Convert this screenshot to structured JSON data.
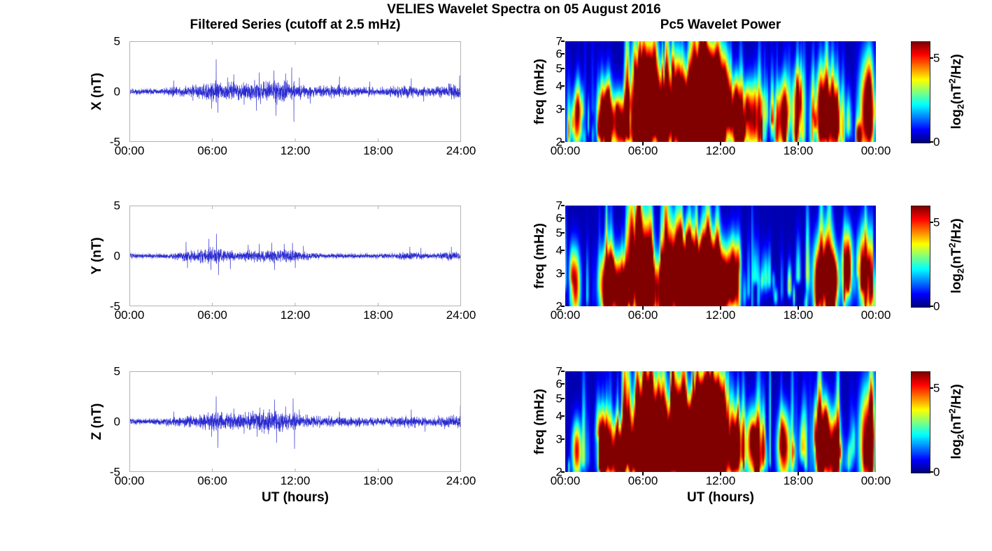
{
  "figure": {
    "suptitle": "VELIES Wavelet Spectra on 05 August 2016",
    "left_column_title": "Filtered Series (cutoff at 2.5 mHz)",
    "right_column_title": "Pc5 Wavelet Power",
    "x_axis_label": "UT (hours)",
    "colorbar_label": {
      "pre": "log",
      "sub": "2",
      "mid": "(nT",
      "sup": "2",
      "post": "/Hz)"
    },
    "background_color": "#ffffff",
    "axis_box_color": "#b2b2b2",
    "tick_label_color": "#000000"
  },
  "chart_data": [
    {
      "type": "line",
      "component": "X",
      "ylabel": "X (nT)",
      "ylim": [
        -5,
        5
      ],
      "yticks": [
        5,
        0,
        -5
      ],
      "x_range_hours": [
        0,
        24
      ],
      "xticks": [
        "00:00",
        "06:00",
        "12:00",
        "18:00",
        "24:00"
      ],
      "line_color": "#1a1acc",
      "noise_seed": 101,
      "envelope_nT": [
        0.12,
        0.12,
        0.13,
        0.22,
        0.22,
        0.3,
        0.45,
        0.38,
        0.38,
        0.45,
        0.5,
        0.5,
        0.35,
        0.28,
        0.25,
        0.28,
        0.22,
        0.2,
        0.18,
        0.22,
        0.28,
        0.22,
        0.2,
        0.3
      ],
      "spikes_nT": [
        {
          "t": 3.2,
          "a": 1.1
        },
        {
          "t": 4.6,
          "a": -0.9
        },
        {
          "t": 5.95,
          "a": -1.7
        },
        {
          "t": 6.28,
          "a": 3.2
        },
        {
          "t": 6.4,
          "a": -2.1
        },
        {
          "t": 7.1,
          "a": 1.4
        },
        {
          "t": 7.55,
          "a": 1.7
        },
        {
          "t": 8.3,
          "a": -1.3
        },
        {
          "t": 9.2,
          "a": -1.9
        },
        {
          "t": 9.4,
          "a": 1.9
        },
        {
          "t": 10.45,
          "a": 2.1
        },
        {
          "t": 10.6,
          "a": -2.4
        },
        {
          "t": 11.3,
          "a": 1.8
        },
        {
          "t": 11.75,
          "a": 2.4
        },
        {
          "t": 11.9,
          "a": -3.0
        },
        {
          "t": 12.3,
          "a": 1.4
        },
        {
          "t": 13.1,
          "a": -1.2
        },
        {
          "t": 15.2,
          "a": 1.5
        },
        {
          "t": 17.4,
          "a": 1.0
        },
        {
          "t": 20.4,
          "a": 1.3
        },
        {
          "t": 21.3,
          "a": -1.0
        },
        {
          "t": 23.9,
          "a": 1.6
        }
      ]
    },
    {
      "type": "line",
      "component": "Y",
      "ylabel": "Y (nT)",
      "ylim": [
        -5,
        5
      ],
      "yticks": [
        5,
        0,
        -5
      ],
      "x_range_hours": [
        0,
        24
      ],
      "xticks": [
        "00:00",
        "06:00",
        "12:00",
        "18:00",
        "24:00"
      ],
      "line_color": "#1a1acc",
      "noise_seed": 202,
      "envelope_nT": [
        0.08,
        0.08,
        0.09,
        0.12,
        0.22,
        0.3,
        0.35,
        0.25,
        0.22,
        0.25,
        0.28,
        0.3,
        0.25,
        0.18,
        0.1,
        0.1,
        0.09,
        0.09,
        0.09,
        0.1,
        0.18,
        0.15,
        0.12,
        0.18
      ],
      "spikes_nT": [
        {
          "t": 4.1,
          "a": 1.4
        },
        {
          "t": 4.2,
          "a": -1.2
        },
        {
          "t": 5.75,
          "a": 1.7
        },
        {
          "t": 5.9,
          "a": -1.4
        },
        {
          "t": 6.3,
          "a": 2.2
        },
        {
          "t": 6.45,
          "a": -1.9
        },
        {
          "t": 7.3,
          "a": -1.3
        },
        {
          "t": 8.6,
          "a": 1.1
        },
        {
          "t": 9.4,
          "a": 1.2
        },
        {
          "t": 10.3,
          "a": 1.3
        },
        {
          "t": 10.5,
          "a": -1.4
        },
        {
          "t": 11.2,
          "a": 1.2
        },
        {
          "t": 11.8,
          "a": 1.3
        },
        {
          "t": 12.0,
          "a": -1.2
        },
        {
          "t": 12.6,
          "a": 1.0
        },
        {
          "t": 20.3,
          "a": 0.9
        },
        {
          "t": 21.1,
          "a": 0.8
        },
        {
          "t": 23.3,
          "a": 0.9
        }
      ]
    },
    {
      "type": "line",
      "component": "Z",
      "ylabel": "Z (nT)",
      "ylim": [
        -5,
        5
      ],
      "yticks": [
        5,
        0,
        -5
      ],
      "x_range_hours": [
        0,
        24
      ],
      "xticks": [
        "00:00",
        "06:00",
        "12:00",
        "18:00",
        "24:00"
      ],
      "line_color": "#1a1acc",
      "noise_seed": 303,
      "envelope_nT": [
        0.12,
        0.12,
        0.13,
        0.2,
        0.22,
        0.28,
        0.42,
        0.35,
        0.35,
        0.42,
        0.48,
        0.48,
        0.33,
        0.26,
        0.24,
        0.26,
        0.22,
        0.2,
        0.18,
        0.22,
        0.28,
        0.22,
        0.2,
        0.3
      ],
      "spikes_nT": [
        {
          "t": 3.2,
          "a": 1.0
        },
        {
          "t": 5.95,
          "a": -1.5
        },
        {
          "t": 6.28,
          "a": 2.5
        },
        {
          "t": 6.4,
          "a": -2.6
        },
        {
          "t": 7.55,
          "a": 1.3
        },
        {
          "t": 8.3,
          "a": -1.2
        },
        {
          "t": 9.25,
          "a": -1.5
        },
        {
          "t": 9.45,
          "a": 1.4
        },
        {
          "t": 10.5,
          "a": 2.2
        },
        {
          "t": 10.65,
          "a": -2.1
        },
        {
          "t": 11.3,
          "a": 1.5
        },
        {
          "t": 11.85,
          "a": 2.3
        },
        {
          "t": 11.95,
          "a": -2.7
        },
        {
          "t": 12.3,
          "a": 1.2
        },
        {
          "t": 15.2,
          "a": 1.0
        },
        {
          "t": 20.4,
          "a": 1.2
        },
        {
          "t": 21.4,
          "a": -1.0
        },
        {
          "t": 23.95,
          "a": 1.6
        }
      ]
    },
    {
      "type": "heatmap",
      "component": "X",
      "ylabel": "freq (mHz)",
      "ylim_mHz": [
        2,
        7
      ],
      "yscale": "log",
      "yticks": [
        7,
        6,
        5,
        4,
        3,
        2
      ],
      "x_range_hours": [
        0,
        24
      ],
      "xticks": [
        "00:00",
        "06:00",
        "12:00",
        "18:00",
        "00:00"
      ],
      "colormap": "jet",
      "clim": [
        0,
        6
      ],
      "colorbar_ticks": [
        5,
        0
      ],
      "background_power": 0.3,
      "streak_count": 170,
      "noise_seed": 11,
      "hourly_power_weight": [
        0.25,
        0.3,
        0.25,
        0.5,
        0.55,
        0.8,
        1.0,
        0.9,
        0.9,
        1.0,
        1.0,
        1.0,
        0.8,
        0.5,
        0.45,
        0.5,
        0.45,
        0.4,
        0.35,
        0.5,
        0.55,
        0.45,
        0.4,
        0.55
      ],
      "major_bursts": [
        {
          "t": 0.9,
          "f": 2.6,
          "wt": 0.25,
          "wf": 0.25,
          "p": 5.2
        },
        {
          "t": 3.1,
          "f": 2.7,
          "wt": 0.4,
          "wf": 0.28,
          "p": 6.2
        },
        {
          "t": 4.2,
          "f": 2.5,
          "wt": 0.35,
          "wf": 0.25,
          "p": 6.4
        },
        {
          "t": 5.9,
          "f": 2.9,
          "wt": 0.45,
          "wf": 0.5,
          "p": 7.2
        },
        {
          "t": 6.6,
          "f": 3.6,
          "wt": 0.4,
          "wf": 0.45,
          "p": 7.0
        },
        {
          "t": 7.6,
          "f": 2.8,
          "wt": 0.4,
          "wf": 0.35,
          "p": 7.0
        },
        {
          "t": 8.7,
          "f": 3.4,
          "wt": 0.4,
          "wf": 0.4,
          "p": 6.6
        },
        {
          "t": 9.4,
          "f": 2.5,
          "wt": 0.5,
          "wf": 0.3,
          "p": 7.4
        },
        {
          "t": 10.4,
          "f": 2.7,
          "wt": 0.6,
          "wf": 0.35,
          "p": 8.0
        },
        {
          "t": 11.3,
          "f": 2.6,
          "wt": 0.6,
          "wf": 0.35,
          "p": 8.2
        },
        {
          "t": 11.9,
          "f": 3.0,
          "wt": 0.4,
          "wf": 0.5,
          "p": 7.6
        },
        {
          "t": 10.9,
          "f": 4.3,
          "wt": 0.5,
          "wf": 0.35,
          "p": 6.8
        },
        {
          "t": 13.2,
          "f": 2.7,
          "wt": 0.35,
          "wf": 0.3,
          "p": 6.0
        },
        {
          "t": 14.4,
          "f": 2.7,
          "wt": 0.45,
          "wf": 0.3,
          "p": 5.6
        },
        {
          "t": 16.8,
          "f": 2.7,
          "wt": 0.35,
          "wf": 0.3,
          "p": 5.8
        },
        {
          "t": 18.0,
          "f": 3.2,
          "wt": 0.3,
          "wf": 0.3,
          "p": 5.2
        },
        {
          "t": 19.9,
          "f": 2.9,
          "wt": 0.45,
          "wf": 0.35,
          "p": 5.8
        },
        {
          "t": 20.8,
          "f": 2.5,
          "wt": 0.35,
          "wf": 0.3,
          "p": 5.6
        },
        {
          "t": 23.3,
          "f": 2.9,
          "wt": 0.4,
          "wf": 0.45,
          "p": 6.2
        }
      ]
    },
    {
      "type": "heatmap",
      "component": "Y",
      "ylabel": "freq (mHz)",
      "ylim_mHz": [
        2,
        7
      ],
      "yscale": "log",
      "yticks": [
        7,
        6,
        5,
        4,
        3,
        2
      ],
      "x_range_hours": [
        0,
        24
      ],
      "xticks": [
        "00:00",
        "06:00",
        "12:00",
        "18:00",
        "00:00"
      ],
      "colormap": "jet",
      "clim": [
        0,
        6
      ],
      "colorbar_ticks": [
        5,
        0
      ],
      "background_power": 0.3,
      "streak_count": 150,
      "noise_seed": 22,
      "hourly_power_weight": [
        0.2,
        0.2,
        0.2,
        0.45,
        0.6,
        0.8,
        1.0,
        0.8,
        0.8,
        0.9,
        0.9,
        0.9,
        0.7,
        0.4,
        0.25,
        0.3,
        0.25,
        0.25,
        0.3,
        0.5,
        0.55,
        0.4,
        0.35,
        0.5
      ],
      "major_bursts": [
        {
          "t": 0.8,
          "f": 2.6,
          "wt": 0.25,
          "wf": 0.3,
          "p": 5.4
        },
        {
          "t": 3.2,
          "f": 2.6,
          "wt": 0.4,
          "wf": 0.3,
          "p": 6.4
        },
        {
          "t": 4.2,
          "f": 2.4,
          "wt": 0.35,
          "wf": 0.3,
          "p": 6.8
        },
        {
          "t": 5.8,
          "f": 3.2,
          "wt": 0.5,
          "wf": 0.5,
          "p": 7.4
        },
        {
          "t": 6.4,
          "f": 2.5,
          "wt": 0.4,
          "wf": 0.3,
          "p": 7.0
        },
        {
          "t": 7.5,
          "f": 2.4,
          "wt": 0.35,
          "wf": 0.28,
          "p": 6.4
        },
        {
          "t": 8.6,
          "f": 3.0,
          "wt": 0.4,
          "wf": 0.4,
          "p": 6.6
        },
        {
          "t": 9.4,
          "f": 2.7,
          "wt": 0.5,
          "wf": 0.35,
          "p": 7.2
        },
        {
          "t": 10.4,
          "f": 2.6,
          "wt": 0.55,
          "wf": 0.35,
          "p": 7.4
        },
        {
          "t": 11.3,
          "f": 2.8,
          "wt": 0.5,
          "wf": 0.35,
          "p": 7.2
        },
        {
          "t": 12.2,
          "f": 2.6,
          "wt": 0.4,
          "wf": 0.3,
          "p": 6.8
        },
        {
          "t": 13.0,
          "f": 2.9,
          "wt": 0.3,
          "wf": 0.3,
          "p": 5.6
        },
        {
          "t": 19.7,
          "f": 2.8,
          "wt": 0.4,
          "wf": 0.35,
          "p": 5.6
        },
        {
          "t": 20.6,
          "f": 2.6,
          "wt": 0.35,
          "wf": 0.3,
          "p": 5.4
        },
        {
          "t": 21.8,
          "f": 3.3,
          "wt": 0.3,
          "wf": 0.3,
          "p": 5.0
        },
        {
          "t": 23.2,
          "f": 3.0,
          "wt": 0.35,
          "wf": 0.4,
          "p": 5.4
        }
      ]
    },
    {
      "type": "heatmap",
      "component": "Z",
      "ylabel": "freq (mHz)",
      "ylim_mHz": [
        2,
        7
      ],
      "yscale": "log",
      "yticks": [
        7,
        6,
        5,
        4,
        3,
        2
      ],
      "x_range_hours": [
        0,
        24
      ],
      "xticks": [
        "00:00",
        "06:00",
        "12:00",
        "18:00",
        "00:00"
      ],
      "colormap": "jet",
      "clim": [
        0,
        6
      ],
      "colorbar_ticks": [
        5,
        0
      ],
      "background_power": 0.3,
      "streak_count": 170,
      "noise_seed": 33,
      "hourly_power_weight": [
        0.25,
        0.3,
        0.25,
        0.5,
        0.55,
        0.8,
        1.0,
        0.9,
        0.9,
        1.0,
        1.0,
        1.0,
        0.8,
        0.5,
        0.45,
        0.5,
        0.45,
        0.4,
        0.35,
        0.5,
        0.55,
        0.45,
        0.4,
        0.55
      ],
      "major_bursts": [
        {
          "t": 0.9,
          "f": 2.6,
          "wt": 0.25,
          "wf": 0.25,
          "p": 5.2
        },
        {
          "t": 3.1,
          "f": 2.7,
          "wt": 0.4,
          "wf": 0.28,
          "p": 6.0
        },
        {
          "t": 4.2,
          "f": 2.5,
          "wt": 0.35,
          "wf": 0.25,
          "p": 6.4
        },
        {
          "t": 5.9,
          "f": 2.9,
          "wt": 0.45,
          "wf": 0.5,
          "p": 7.2
        },
        {
          "t": 6.6,
          "f": 3.7,
          "wt": 0.4,
          "wf": 0.45,
          "p": 7.0
        },
        {
          "t": 7.6,
          "f": 2.8,
          "wt": 0.4,
          "wf": 0.35,
          "p": 6.8
        },
        {
          "t": 8.8,
          "f": 3.3,
          "wt": 0.4,
          "wf": 0.4,
          "p": 6.6
        },
        {
          "t": 9.5,
          "f": 2.6,
          "wt": 0.5,
          "wf": 0.35,
          "p": 7.8
        },
        {
          "t": 10.5,
          "f": 2.8,
          "wt": 0.7,
          "wf": 0.4,
          "p": 8.4
        },
        {
          "t": 11.4,
          "f": 2.7,
          "wt": 0.6,
          "wf": 0.4,
          "p": 8.4
        },
        {
          "t": 12.0,
          "f": 3.1,
          "wt": 0.4,
          "wf": 0.5,
          "p": 7.4
        },
        {
          "t": 11.0,
          "f": 4.3,
          "wt": 0.5,
          "wf": 0.35,
          "p": 6.8
        },
        {
          "t": 13.2,
          "f": 2.7,
          "wt": 0.35,
          "wf": 0.3,
          "p": 5.8
        },
        {
          "t": 14.5,
          "f": 2.8,
          "wt": 0.4,
          "wf": 0.3,
          "p": 5.6
        },
        {
          "t": 16.9,
          "f": 2.7,
          "wt": 0.35,
          "wf": 0.3,
          "p": 5.8
        },
        {
          "t": 19.9,
          "f": 2.9,
          "wt": 0.45,
          "wf": 0.35,
          "p": 5.8
        },
        {
          "t": 20.8,
          "f": 2.5,
          "wt": 0.35,
          "wf": 0.3,
          "p": 5.6
        },
        {
          "t": 23.3,
          "f": 2.9,
          "wt": 0.4,
          "wf": 0.45,
          "p": 6.2
        }
      ]
    }
  ]
}
